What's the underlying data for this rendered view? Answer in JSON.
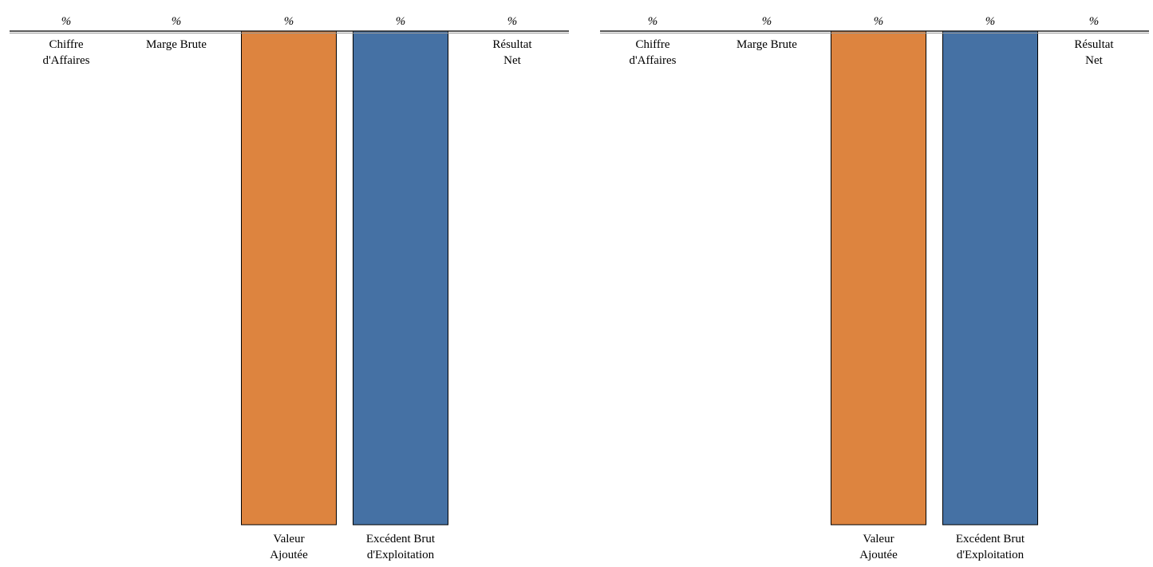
{
  "colors": {
    "positive": "#dd843f",
    "negative": "#4571a4",
    "bar_stroke": "#000000",
    "axis": "#222222",
    "axis_shadow": "#9a9a9a"
  },
  "chart_data": [
    {
      "type": "bar",
      "categories": [
        [
          "Chiffre",
          "d'Affaires"
        ],
        [
          "Marge Brute"
        ],
        [
          "Valeur",
          "Ajoutée"
        ],
        [
          "Excédent Brut",
          "d'Exploitation"
        ],
        [
          "Résultat",
          "Net"
        ]
      ],
      "value_labels": [
        "%",
        "%",
        "%",
        "%",
        "%"
      ],
      "values": [
        0,
        0,
        -100,
        -100,
        0
      ],
      "ylim": [
        -100,
        0
      ],
      "bar_colors": [
        "",
        "",
        "positive",
        "negative",
        ""
      ],
      "grid": false,
      "legend": "none"
    },
    {
      "type": "bar",
      "categories": [
        [
          "Chiffre",
          "d'Affaires"
        ],
        [
          "Marge Brute"
        ],
        [
          "Valeur",
          "Ajoutée"
        ],
        [
          "Excédent Brut",
          "d'Exploitation"
        ],
        [
          "Résultat",
          "Net"
        ]
      ],
      "value_labels": [
        "%",
        "%",
        "%",
        "%",
        "%"
      ],
      "values": [
        0,
        0,
        -100,
        -100,
        0
      ],
      "ylim": [
        -100,
        0
      ],
      "bar_colors": [
        "",
        "",
        "positive",
        "negative",
        ""
      ],
      "grid": false,
      "legend": "none"
    }
  ]
}
